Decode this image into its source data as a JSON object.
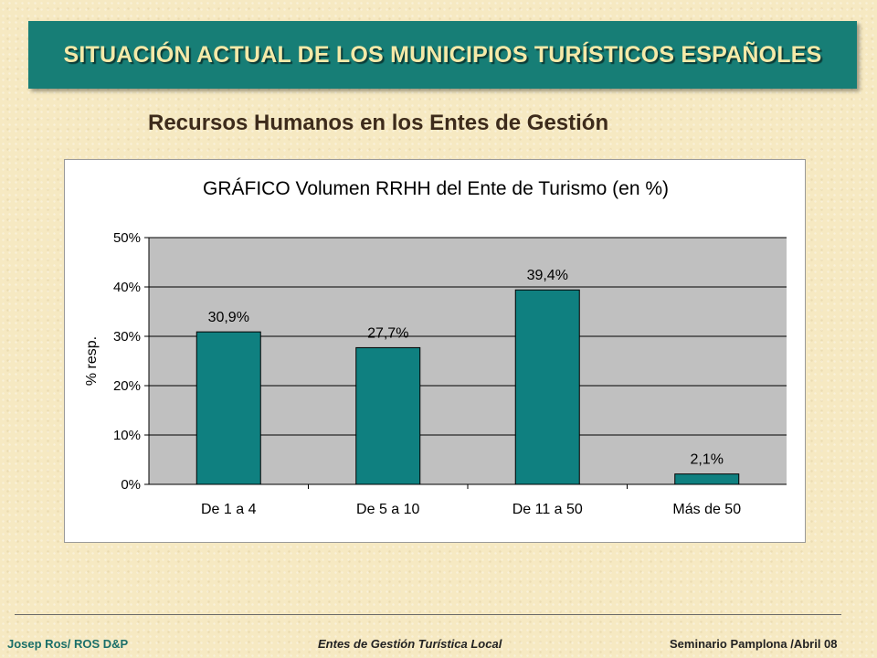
{
  "header": {
    "title": "SITUACIÓN ACTUAL DE LOS MUNICIPIOS TURÍSTICOS ESPAÑOLES",
    "subtitle": "Recursos Humanos en los Entes de Gestión"
  },
  "colors": {
    "banner": "#177e76",
    "banner_text": "#f4e9a8",
    "bar": "#0f8080",
    "plot_background": "#c0c0c0"
  },
  "chart_data": {
    "type": "bar",
    "title": "GRÁFICO Volumen RRHH del Ente de Turismo (en %)",
    "xlabel": "",
    "ylabel": "% resp.",
    "categories": [
      "De 1  a 4",
      "De 5 a 10",
      "De 11 a 50",
      "Más de 50"
    ],
    "values": [
      30.9,
      27.7,
      39.4,
      2.1
    ],
    "data_labels": [
      "30,9%",
      "27,7%",
      "39,4%",
      "2,1%"
    ],
    "ylim": [
      0,
      50
    ],
    "yticks": [
      0,
      10,
      20,
      30,
      40,
      50
    ],
    "ytick_labels": [
      "0%",
      "10%",
      "20%",
      "30%",
      "40%",
      "50%"
    ],
    "grid": true,
    "legend": "none"
  },
  "footer": {
    "left": "Josep Ros/ ROS D&P",
    "center": "Entes de Gestión Turística Local",
    "right": "Seminario Pamplona /Abril 08"
  }
}
